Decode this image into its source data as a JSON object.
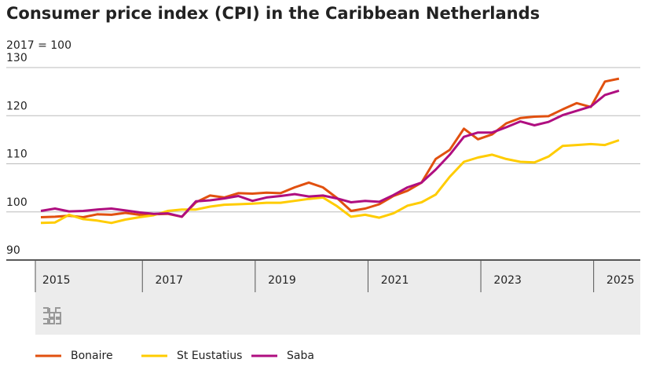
{
  "chart_data": {
    "type": "line",
    "title": "Consumer price index (CPI) in the Caribbean Netherlands",
    "subtitle": "2017 = 100",
    "categories": [
      "2015",
      null,
      null,
      null,
      null,
      null,
      null,
      null,
      "2017",
      null,
      null,
      null,
      null,
      null,
      null,
      null,
      "2019",
      null,
      null,
      null,
      null,
      null,
      null,
      null,
      "2021",
      null,
      null,
      null,
      null,
      null,
      null,
      null,
      "2023",
      null,
      null,
      null,
      null,
      null,
      null,
      null,
      "2025",
      null
    ],
    "series": [
      {
        "name": "Bonaire",
        "color": "#e1500f",
        "values": [
          98.9,
          99.0,
          99.2,
          98.9,
          99.5,
          99.4,
          99.8,
          99.4,
          99.5,
          99.6,
          99.0,
          102.0,
          103.4,
          103.0,
          103.9,
          103.8,
          104.0,
          103.9,
          105.1,
          106.1,
          105.1,
          102.9,
          100.2,
          100.7,
          101.6,
          103.3,
          104.4,
          106.1,
          111.0,
          112.9,
          117.3,
          115.1,
          116.1,
          118.4,
          119.5,
          119.8,
          119.9,
          121.3,
          122.6,
          121.8,
          127.1,
          127.7
        ]
      },
      {
        "name": "St Eustatius",
        "color": "#ffcc00",
        "values": [
          97.7,
          97.8,
          99.4,
          98.5,
          98.2,
          97.7,
          98.4,
          98.9,
          99.3,
          100.2,
          100.5,
          100.5,
          101.1,
          101.5,
          101.6,
          101.7,
          101.9,
          101.9,
          102.3,
          102.7,
          103.0,
          101.2,
          99.0,
          99.4,
          98.8,
          99.7,
          101.3,
          102.0,
          103.6,
          107.3,
          110.4,
          111.3,
          111.9,
          111.0,
          110.4,
          110.3,
          111.5,
          113.7,
          113.9,
          114.1,
          113.9,
          114.9
        ]
      },
      {
        "name": "Saba",
        "color": "#af0e80",
        "values": [
          100.2,
          100.7,
          100.1,
          100.2,
          100.5,
          100.7,
          100.3,
          99.9,
          99.6,
          99.7,
          99.0,
          102.2,
          102.4,
          102.8,
          103.3,
          102.3,
          103.0,
          103.3,
          103.7,
          103.2,
          103.4,
          102.8,
          102.0,
          102.3,
          102.1,
          103.5,
          105.1,
          106.1,
          108.8,
          111.9,
          115.6,
          116.5,
          116.5,
          117.6,
          118.8,
          118.0,
          118.7,
          120.1,
          121.0,
          121.9,
          124.3,
          125.2
        ]
      }
    ],
    "ylim": [
      90,
      130
    ],
    "yticks": [
      90,
      100,
      110,
      120,
      130
    ],
    "grid": true
  }
}
